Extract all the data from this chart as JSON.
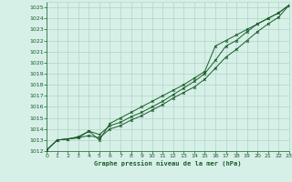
{
  "xlabel": "Graphe pression niveau de la mer (hPa)",
  "xlim": [
    0,
    23
  ],
  "ylim": [
    1012,
    1025.5
  ],
  "yticks": [
    1012,
    1013,
    1014,
    1015,
    1016,
    1017,
    1018,
    1019,
    1020,
    1021,
    1022,
    1023,
    1024,
    1025
  ],
  "xticks": [
    0,
    1,
    2,
    3,
    4,
    5,
    6,
    7,
    8,
    9,
    10,
    11,
    12,
    13,
    14,
    15,
    16,
    17,
    18,
    19,
    20,
    21,
    22,
    23
  ],
  "bg_color": "#d6f0e8",
  "grid_color": "#b0d4c4",
  "line_color": "#1a5c28",
  "line1_x": [
    0,
    1,
    2,
    3,
    4,
    5,
    6,
    7,
    8,
    9,
    10,
    11,
    12,
    13,
    14,
    15,
    16,
    17,
    18,
    19,
    20,
    21,
    22,
    23
  ],
  "line1_y": [
    1012.1,
    1013.0,
    1013.1,
    1013.2,
    1013.4,
    1013.2,
    1014.0,
    1014.3,
    1014.8,
    1015.2,
    1015.7,
    1016.2,
    1016.8,
    1017.3,
    1017.8,
    1018.5,
    1019.5,
    1020.5,
    1021.2,
    1022.0,
    1022.8,
    1023.5,
    1024.1,
    1025.2
  ],
  "line2_x": [
    0,
    1,
    2,
    3,
    4,
    5,
    6,
    7,
    8,
    9,
    10,
    11,
    12,
    13,
    14,
    15,
    16,
    17,
    18,
    19,
    20,
    21,
    22,
    23
  ],
  "line2_y": [
    1012.1,
    1013.0,
    1013.1,
    1013.2,
    1013.8,
    1013.5,
    1014.3,
    1014.6,
    1015.1,
    1015.5,
    1016.0,
    1016.5,
    1017.1,
    1017.7,
    1018.3,
    1019.0,
    1020.2,
    1021.5,
    1022.0,
    1022.8,
    1023.5,
    1024.0,
    1024.5,
    1025.2
  ],
  "line3_x": [
    0,
    1,
    2,
    3,
    4,
    5,
    6,
    7,
    8,
    9,
    10,
    11,
    12,
    13,
    14,
    15,
    16,
    17,
    18,
    19,
    20,
    21,
    22,
    23
  ],
  "line3_y": [
    1012.1,
    1013.0,
    1013.1,
    1013.3,
    1013.8,
    1013.0,
    1014.5,
    1015.0,
    1015.5,
    1016.0,
    1016.5,
    1017.0,
    1017.5,
    1018.0,
    1018.6,
    1019.2,
    1021.5,
    1022.0,
    1022.5,
    1023.0,
    1023.5,
    1024.0,
    1024.5,
    1025.2
  ]
}
